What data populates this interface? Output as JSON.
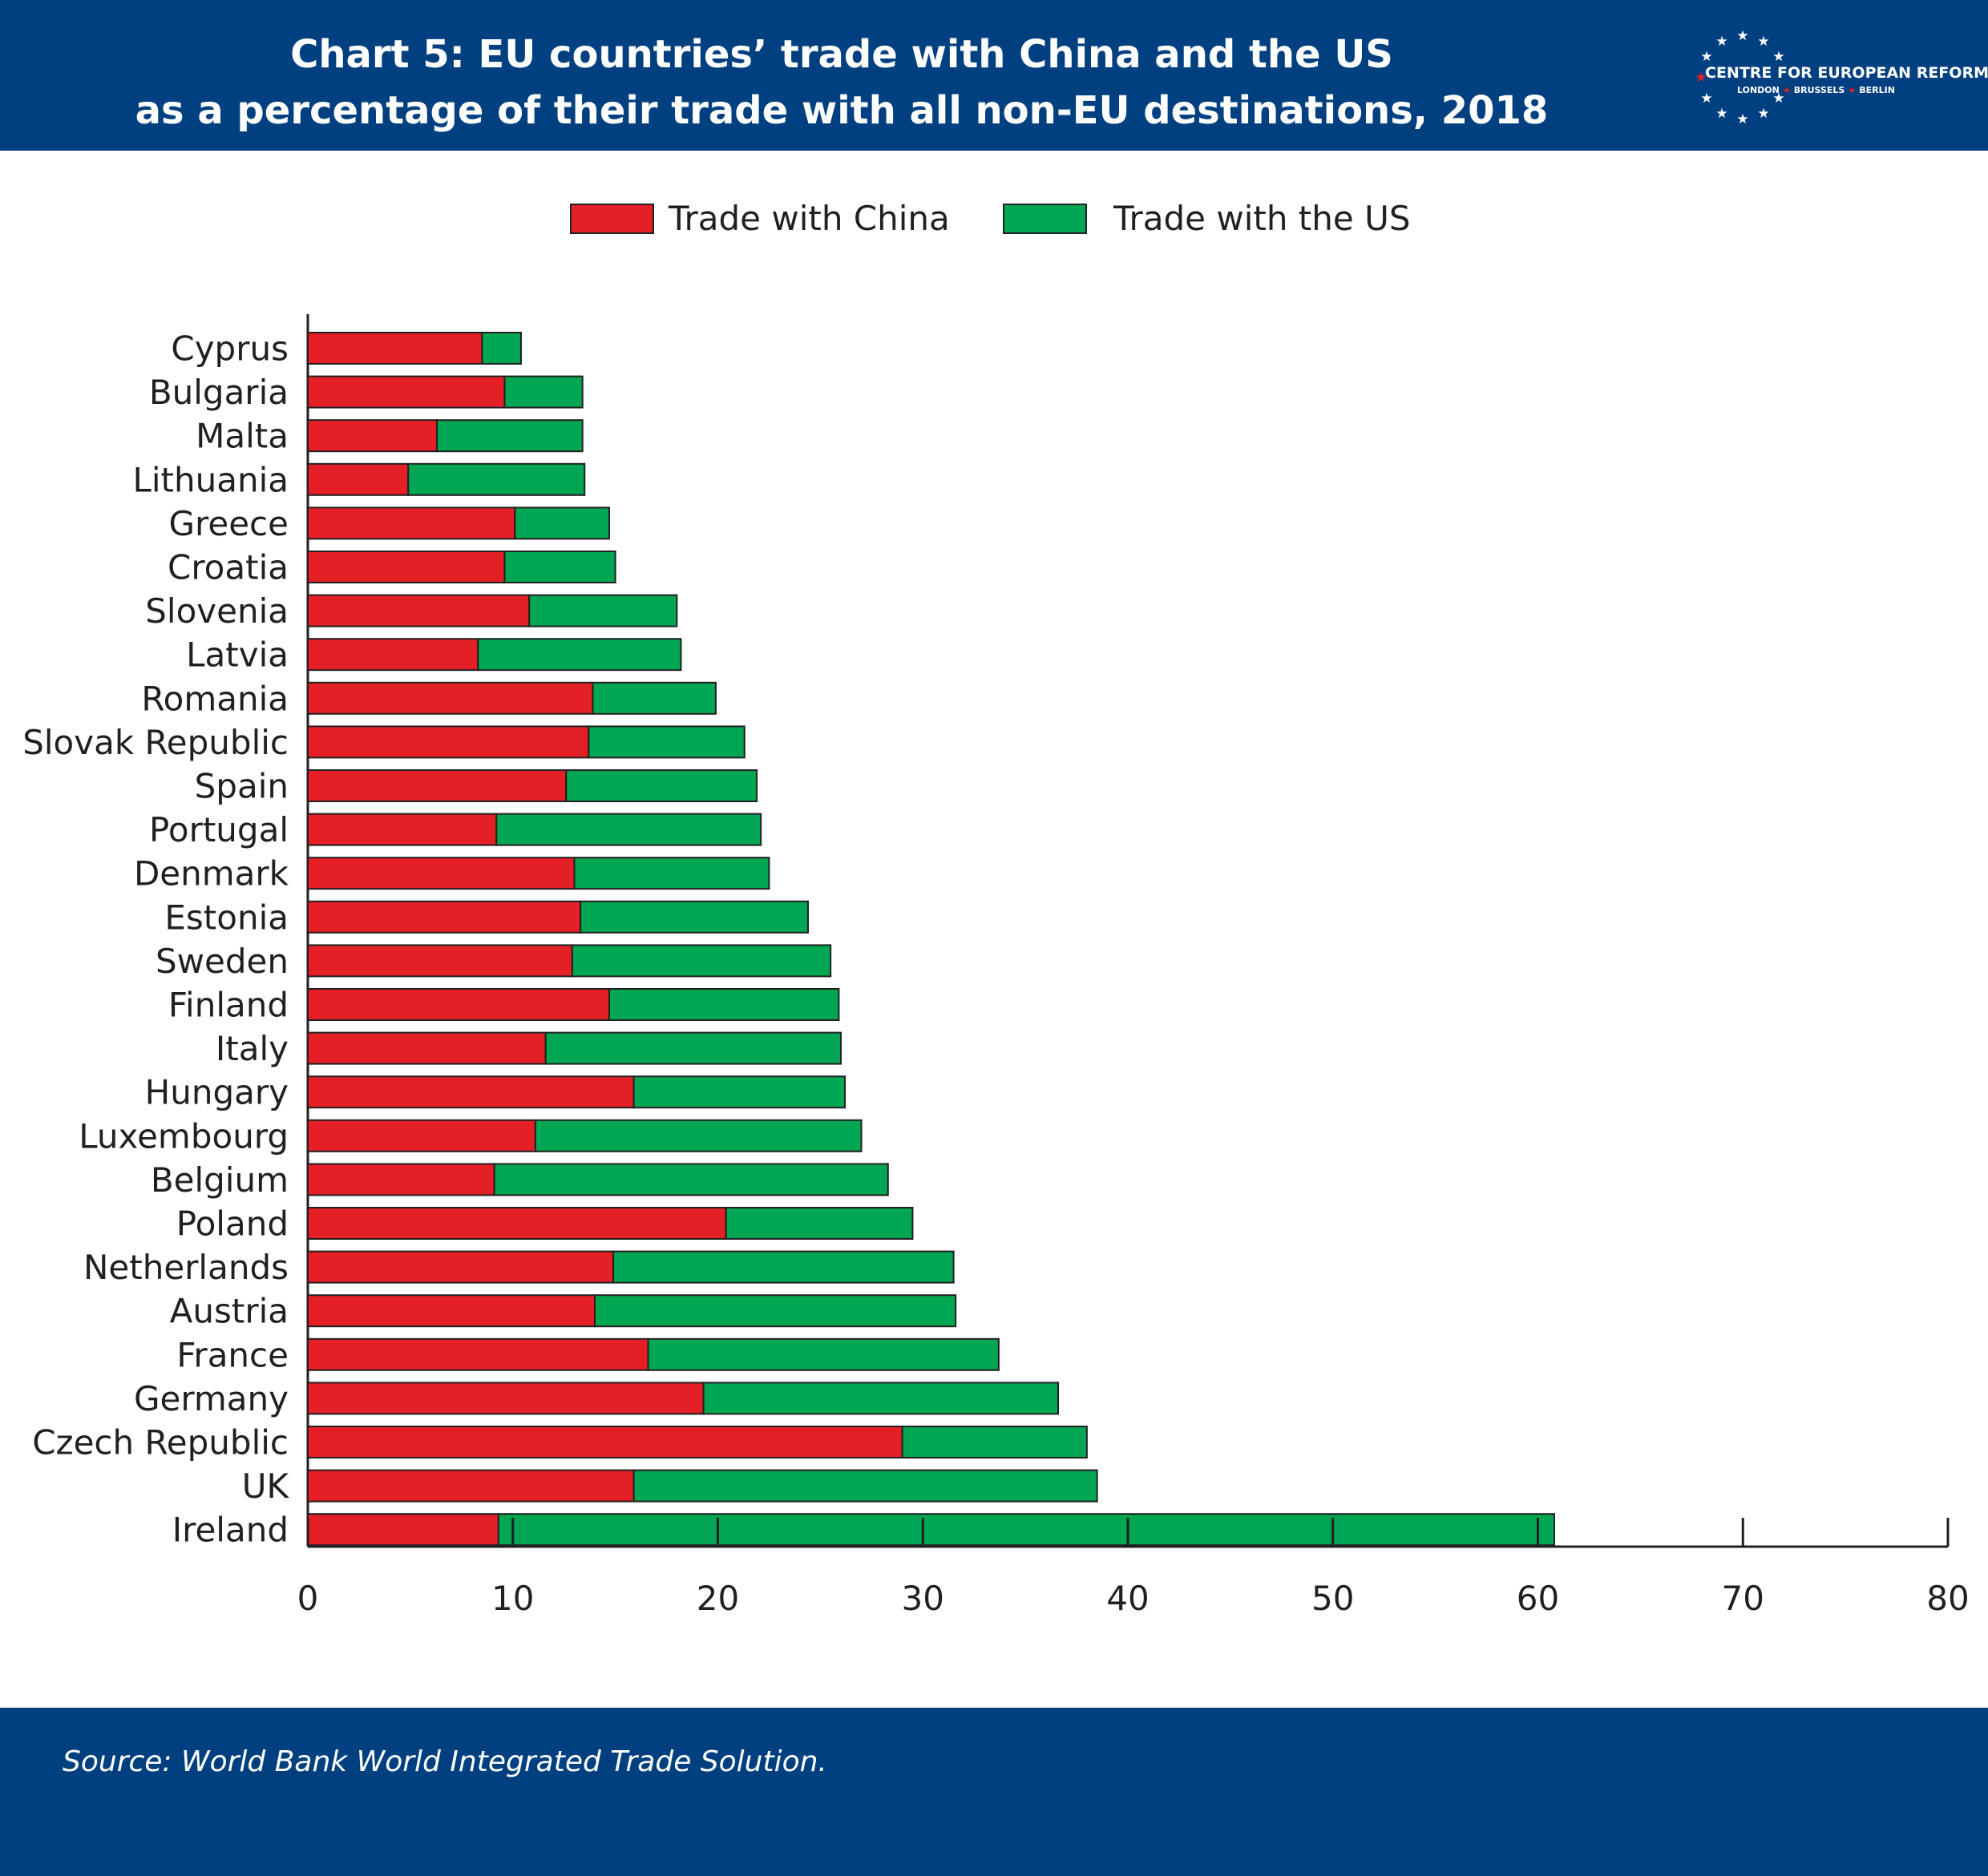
{
  "header": {
    "title_line1": "Chart 5: EU countries’ trade with China and the US",
    "title_line2": "as a percentage of their trade with all non-EU destinations, 2018",
    "logo": {
      "name": "CENTRE FOR EUROPEAN REFORM",
      "city1": "LONDON",
      "city2": "BRUSSELS",
      "city3": "BERLIN",
      "icon": "eu-stars-ring-icon"
    },
    "background_color": "#004080"
  },
  "footer": {
    "source": "Source: World Bank World Integrated Trade Solution."
  },
  "chart_data": {
    "type": "bar",
    "orientation": "horizontal",
    "stacked": true,
    "categories": [
      "Cyprus",
      "Bulgaria",
      "Malta",
      "Lithuania",
      "Greece",
      "Croatia",
      "Slovenia",
      "Latvia",
      "Romania",
      "Slovak Republic",
      "Spain",
      "Portugal",
      "Denmark",
      "Estonia",
      "Sweden",
      "Finland",
      "Italy",
      "Hungary",
      "Luxembourg",
      "Belgium",
      "Poland",
      "Netherlands",
      "Austria",
      "France",
      "Germany",
      "Czech Republic",
      "UK",
      "Ireland"
    ],
    "series": [
      {
        "name": "Trade with China",
        "color": "#e41f26",
        "values": [
          8.5,
          9.6,
          6.3,
          4.9,
          10.1,
          9.6,
          10.8,
          8.3,
          13.9,
          13.7,
          12.6,
          9.2,
          13.0,
          13.3,
          12.9,
          14.7,
          11.6,
          15.9,
          11.1,
          9.1,
          20.4,
          14.9,
          14.0,
          16.6,
          19.3,
          29.0,
          15.9,
          9.3
        ]
      },
      {
        "name": "Trade with the US",
        "color": "#00a651",
        "values": [
          1.9,
          3.8,
          7.1,
          8.6,
          4.6,
          5.4,
          7.2,
          9.9,
          6.0,
          7.6,
          9.3,
          12.9,
          9.5,
          11.1,
          12.6,
          11.2,
          14.4,
          10.3,
          15.9,
          19.2,
          9.1,
          16.6,
          17.6,
          17.1,
          17.3,
          9.0,
          22.6,
          51.5
        ]
      }
    ],
    "x_ticks": [
      0,
      10,
      20,
      30,
      40,
      50,
      60,
      70,
      80
    ],
    "xlim": [
      0,
      80
    ],
    "title": "Chart 5: EU countries’ trade with China and the US as a percentage of their trade with all non-EU destinations, 2018",
    "xlabel": "",
    "ylabel": "",
    "grid": false,
    "legend_position": "top-center"
  }
}
